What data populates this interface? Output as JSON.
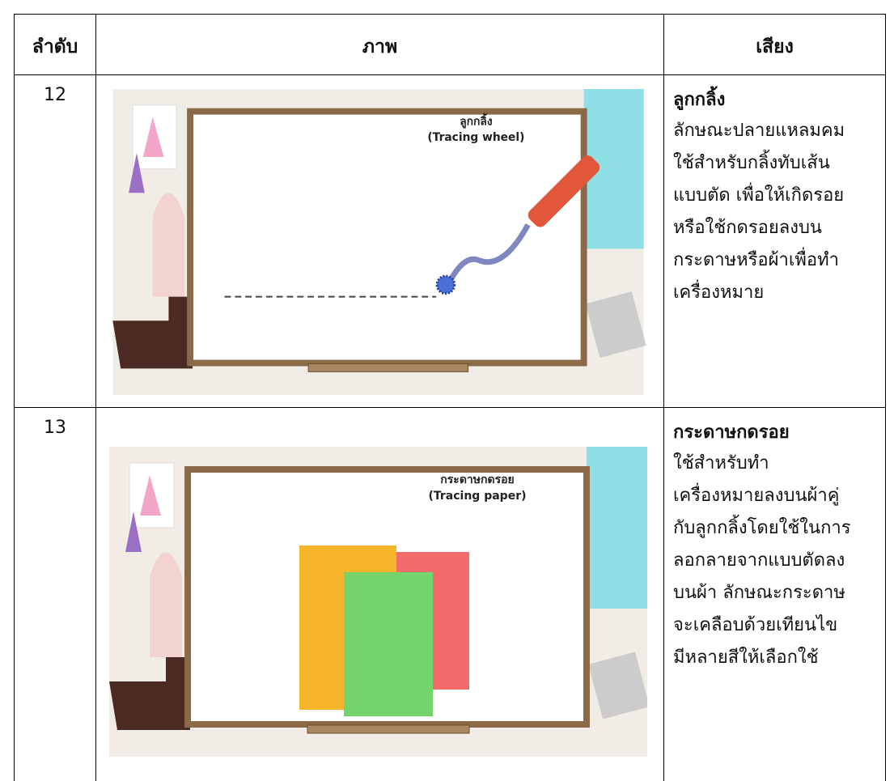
{
  "table": {
    "headers": [
      "ลำดับ",
      "ภาพ",
      "เสียง"
    ],
    "rows": [
      {
        "number": "12",
        "image": {
          "label": "ลูกกลิ้ง",
          "sublabel": "(Tracing wheel)"
        },
        "title": "ลูกกลิ้ง",
        "lines": [
          "ลักษณะปลายแหลมคม",
          "ใช้สำหรับกลิ้งทับเส้น",
          "แบบตัด เพื่อให้เกิดรอย",
          "หรือใช้กดรอยลงบน",
          "กระดาษหรือผ้าเพื่อทำ",
          "เครื่องหมาย"
        ]
      },
      {
        "number": "13",
        "image": {
          "label": "กระดาษกดรอย",
          "sublabel": "(Tracing paper)"
        },
        "title": "กระดาษกดรอย",
        "lines": [
          "ใช้สำหรับทำ",
          "เครื่องหมายลงบนผ้าคู่",
          "กับลูกกลิ้งโดยใช้ในการ",
          "ลอกลายจากแบบตัดลง",
          "บนผ้า ลักษณะกระดาษ",
          "จะเคลือบด้วยเทียนไข",
          "มีหลายสีให้เลือกใช้"
        ]
      }
    ]
  }
}
